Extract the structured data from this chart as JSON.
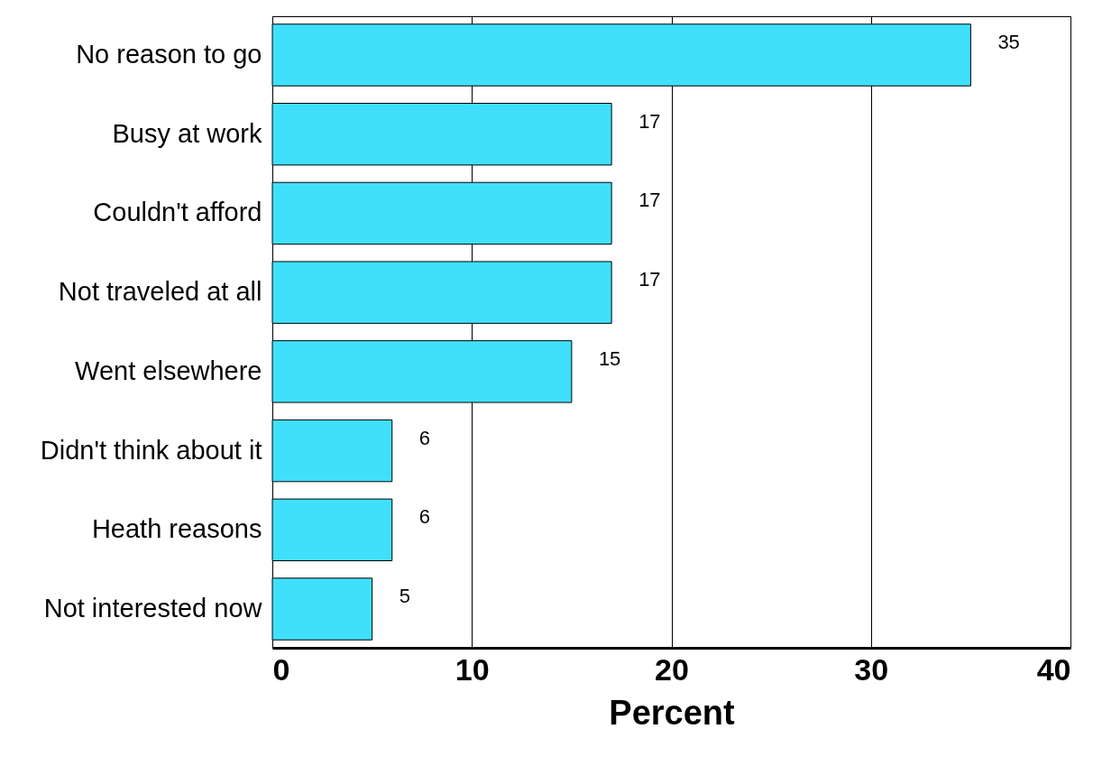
{
  "chart_data": {
    "type": "bar",
    "orientation": "horizontal",
    "xlabel": "Percent",
    "categories": [
      "No reason to go",
      "Busy at work",
      "Couldn't afford",
      "Not traveled at all",
      "Went elsewhere",
      "Didn't think about it",
      "Heath reasons",
      "Not interested now"
    ],
    "values": [
      35,
      17,
      17,
      17,
      15,
      6,
      6,
      5
    ],
    "color": "#40e0fc",
    "xlim": [
      0,
      40
    ],
    "xticks": [
      0,
      10,
      20,
      30,
      40
    ],
    "grid": "x",
    "data_labels": true
  }
}
